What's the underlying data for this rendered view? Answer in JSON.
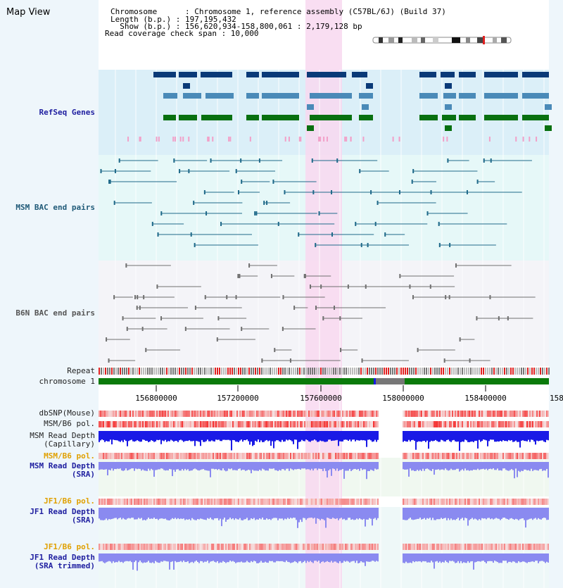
{
  "page": {
    "title": "Map View"
  },
  "info": {
    "chromosome": "Chromosome      : Chromosome 1, reference assembly (C57BL/6J) (Build 37)",
    "length": "Length (b.p.) : 197,195,432",
    "show": "  Show (b.p.) : 156,620,934-158,800,061 : 2,179,128 bp",
    "coverage": "Read coverage check span : 10,000"
  },
  "tracks": {
    "refseq": "RefSeq Genes",
    "msm_bac": "MSM BAC end pairs",
    "b6n_bac": "B6N BAC end pairs",
    "repeat": "Repeat",
    "chromosome": "chromosome 1",
    "dbsnp": "dbSNP(Mouse)",
    "msm_pol": "MSM/B6 pol.",
    "msm_depth_cap": "MSM Read Depth\n(Capillary)",
    "msm_pol2": "MSM/B6 pol.",
    "msm_depth_sra": "MSM Read Depth\n(SRA)",
    "jf1_pol": "JF1/B6 pol.",
    "jf1_depth_sra": "JF1 Read Depth\n(SRA)",
    "jf1_pol2": "JF1/B6 pol.",
    "jf1_depth_trim": "JF1 Read Depth\n(SRA trimmed)"
  },
  "axis": {
    "ticks": [
      "156800000",
      "157200000",
      "157600000",
      "158000000",
      "158400000",
      "158"
    ]
  },
  "colors": {
    "refseq_bg": "#dbeff8",
    "msm_bg": "#e6f8f8",
    "b6n_bg": "#f4f4f8",
    "highlight": "#f8d8f0",
    "gene_navy": "#0a3a78",
    "gene_steel": "#4a8ab8",
    "gene_green": "#087010",
    "pink": "#f2a0c8",
    "teal_line": "#206a8a",
    "grey_line": "#707070",
    "chrom_green": "#0a7a0a",
    "depth_blue": "#1a1ae6",
    "depth_light": "#8a8af0"
  }
}
